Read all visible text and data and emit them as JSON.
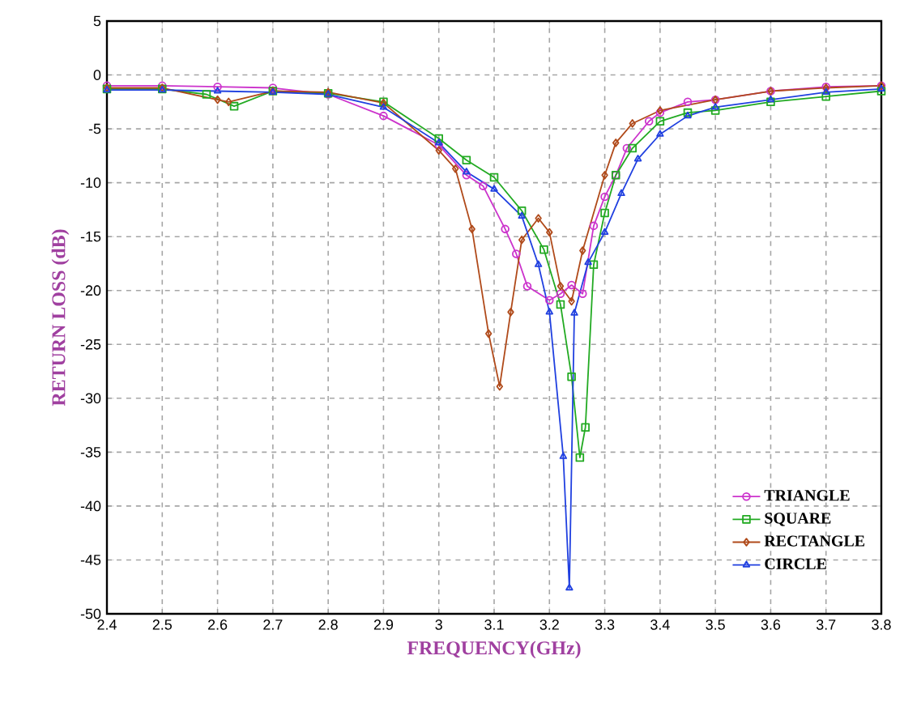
{
  "chart_data": {
    "type": "line",
    "xlabel": "FREQUENCY(GHz)",
    "ylabel": "RETURN LOSS (dB)",
    "xlim": [
      2.4,
      3.8
    ],
    "ylim": [
      -50,
      5
    ],
    "xticks": [
      2.4,
      2.5,
      2.6,
      2.7,
      2.8,
      2.9,
      3,
      3.1,
      3.2,
      3.3,
      3.4,
      3.5,
      3.6,
      3.7,
      3.8
    ],
    "yticks": [
      -50,
      -45,
      -40,
      -35,
      -30,
      -25,
      -20,
      -15,
      -10,
      -5,
      0,
      5
    ],
    "grid": true,
    "legend": "bottom right",
    "line_style": "solid",
    "series": [
      {
        "name": "TRIANGLE",
        "color": "#cc33cc",
        "marker": "circle",
        "x": [
          2.4,
          2.5,
          2.6,
          2.7,
          2.8,
          2.9,
          3.0,
          3.05,
          3.08,
          3.12,
          3.14,
          3.16,
          3.2,
          3.22,
          3.24,
          3.26,
          3.28,
          3.3,
          3.32,
          3.34,
          3.38,
          3.4,
          3.45,
          3.5,
          3.6,
          3.7,
          3.8
        ],
        "values": [
          -1,
          -1,
          -1.1,
          -1.2,
          -1.8,
          -3.8,
          -6.5,
          -9.3,
          -10.3,
          -14.3,
          -16.6,
          -19.6,
          -20.9,
          -20.3,
          -19.5,
          -20.3,
          -14,
          -11.3,
          -9.3,
          -6.8,
          -4.3,
          -3.5,
          -2.5,
          -2.3,
          -1.5,
          -1.1,
          -1
        ]
      },
      {
        "name": "SQUARE",
        "color": "#22aa22",
        "marker": "square",
        "x": [
          2.4,
          2.5,
          2.58,
          2.63,
          2.7,
          2.8,
          2.9,
          3.0,
          3.05,
          3.1,
          3.15,
          3.19,
          3.22,
          3.24,
          3.255,
          3.265,
          3.28,
          3.3,
          3.32,
          3.35,
          3.4,
          3.45,
          3.5,
          3.6,
          3.7,
          3.8
        ],
        "values": [
          -1.3,
          -1.3,
          -1.8,
          -2.9,
          -1.5,
          -1.7,
          -2.5,
          -5.9,
          -7.9,
          -9.5,
          -12.6,
          -16.2,
          -21.3,
          -28,
          -35.5,
          -32.7,
          -17.6,
          -12.8,
          -9.3,
          -6.8,
          -4.3,
          -3.5,
          -3.3,
          -2.5,
          -2,
          -1.5
        ]
      },
      {
        "name": "RECTANGLE",
        "color": "#b04a1a",
        "marker": "diamond",
        "x": [
          2.4,
          2.5,
          2.6,
          2.62,
          2.7,
          2.8,
          2.9,
          3.0,
          3.03,
          3.06,
          3.09,
          3.11,
          3.13,
          3.15,
          3.18,
          3.2,
          3.22,
          3.24,
          3.26,
          3.3,
          3.32,
          3.35,
          3.4,
          3.5,
          3.6,
          3.7,
          3.8
        ],
        "values": [
          -1.2,
          -1.2,
          -2.3,
          -2.5,
          -1.5,
          -1.6,
          -2.6,
          -7,
          -8.7,
          -14.3,
          -24,
          -28.9,
          -22,
          -15.3,
          -13.3,
          -14.6,
          -19.6,
          -21,
          -16.3,
          -9.3,
          -6.3,
          -4.5,
          -3.3,
          -2.3,
          -1.5,
          -1.2,
          -1
        ]
      },
      {
        "name": "CIRCLE",
        "color": "#2040e0",
        "marker": "triangle",
        "x": [
          2.4,
          2.5,
          2.6,
          2.7,
          2.8,
          2.9,
          3.0,
          3.05,
          3.1,
          3.15,
          3.18,
          3.2,
          3.225,
          3.236,
          3.245,
          3.27,
          3.3,
          3.33,
          3.36,
          3.4,
          3.45,
          3.5,
          3.6,
          3.7,
          3.8
        ],
        "values": [
          -1.4,
          -1.4,
          -1.5,
          -1.6,
          -1.8,
          -3,
          -6.3,
          -9,
          -10.6,
          -13.1,
          -17.6,
          -22,
          -35.4,
          -47.6,
          -22.1,
          -17.4,
          -14.6,
          -11,
          -7.8,
          -5.5,
          -3.8,
          -3,
          -2.3,
          -1.6,
          -1.3
        ]
      }
    ]
  }
}
